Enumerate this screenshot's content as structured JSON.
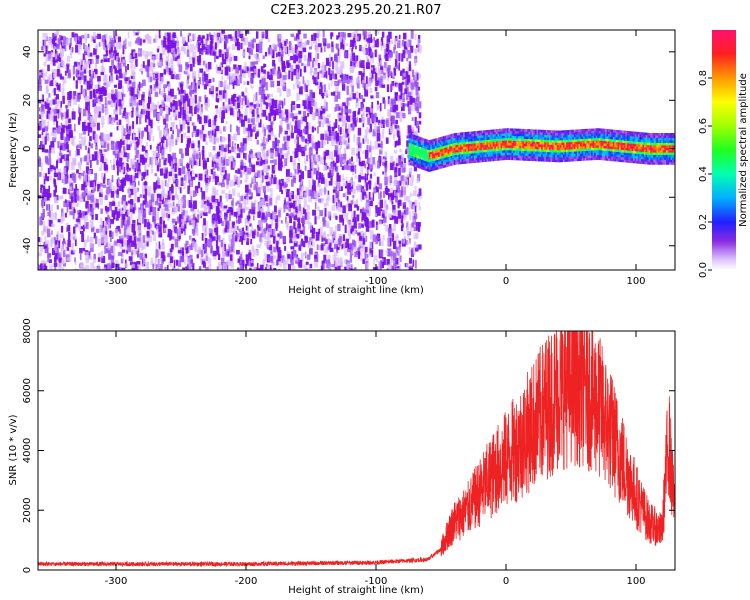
{
  "figure_title": "C2E3.2023.295.20.21.R07",
  "chart_data": [
    {
      "type": "heatmap",
      "title": "C2E3.2023.295.20.21.R07",
      "xlabel": "Height of straight line (km)",
      "ylabel": "Frequency (Hz)",
      "xlim": [
        -360,
        130
      ],
      "ylim": [
        -50,
        49
      ],
      "x_ticks": [
        -300,
        -200,
        -100,
        0,
        100
      ],
      "y_ticks": [
        -40,
        -20,
        0,
        20,
        40
      ],
      "colorbar": {
        "label": "Normalized spectral amplitude",
        "range": [
          0.0,
          1.0
        ],
        "ticks": [
          0.0,
          0.2,
          0.4,
          0.6,
          0.8
        ]
      },
      "regions": [
        {
          "x_range": [
            -360,
            -75
          ],
          "frequency_range": [
            -50,
            49
          ],
          "amplitude": 0.05
        },
        {
          "x_range": [
            -75,
            130
          ],
          "center_frequency_hz": 1,
          "bandwidth_hz": 8,
          "peak_amplitude": 1.0
        }
      ],
      "band_center_frequency": [
        {
          "x": -75,
          "y": 0
        },
        {
          "x": -60,
          "y": -3
        },
        {
          "x": -40,
          "y": 0
        },
        {
          "x": -20,
          "y": 1
        },
        {
          "x": 0,
          "y": 2
        },
        {
          "x": 40,
          "y": 1
        },
        {
          "x": 70,
          "y": 2
        },
        {
          "x": 90,
          "y": 1
        },
        {
          "x": 110,
          "y": 0
        },
        {
          "x": 130,
          "y": 0
        }
      ]
    },
    {
      "type": "line",
      "xlabel": "Height of straight line (km)",
      "ylabel": "SNR (10 * v/v)",
      "xlim": [
        -360,
        130
      ],
      "ylim": [
        0,
        8000
      ],
      "x_ticks": [
        -300,
        -200,
        -100,
        0,
        100
      ],
      "y_ticks": [
        0,
        2000,
        4000,
        6000,
        8000
      ],
      "color": "#ee2222",
      "series": [
        {
          "x": [
            -360,
            -300,
            -200,
            -100,
            -60,
            -50,
            -45,
            -40,
            -30,
            -20,
            -10,
            0,
            10,
            20,
            30,
            40,
            50,
            60,
            70,
            80,
            90,
            100,
            110,
            120,
            125,
            130
          ],
          "y": [
            200,
            200,
            200,
            250,
            350,
            700,
            1200,
            1600,
            2000,
            2600,
            3200,
            3700,
            4200,
            4800,
            5400,
            5900,
            6300,
            6200,
            5600,
            4700,
            3600,
            2500,
            1600,
            1300,
            4500,
            1800
          ]
        }
      ]
    }
  ]
}
